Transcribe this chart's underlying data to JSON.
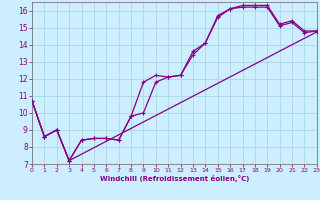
{
  "xlabel": "Windchill (Refroidissement éolien,°C)",
  "xlim": [
    0,
    23
  ],
  "ylim": [
    7,
    16.5
  ],
  "xticks": [
    0,
    1,
    2,
    3,
    4,
    5,
    6,
    7,
    8,
    9,
    10,
    11,
    12,
    13,
    14,
    15,
    16,
    17,
    18,
    19,
    20,
    21,
    22,
    23
  ],
  "yticks": [
    7,
    8,
    9,
    10,
    11,
    12,
    13,
    14,
    15,
    16
  ],
  "bg_color": "#cceeff",
  "grid_color": "#aad8e0",
  "line_color": "#880088",
  "line1_x": [
    0,
    1,
    2,
    3,
    4,
    5,
    6,
    7,
    8,
    9,
    10,
    11,
    12,
    13,
    14,
    15,
    16,
    17,
    18,
    19,
    20,
    21,
    22,
    23
  ],
  "line1_y": [
    10.7,
    8.6,
    9.0,
    7.2,
    8.4,
    8.5,
    8.5,
    8.4,
    9.8,
    11.8,
    12.2,
    12.1,
    12.2,
    13.6,
    14.1,
    15.7,
    16.1,
    16.3,
    16.3,
    16.3,
    15.2,
    15.4,
    14.8,
    14.8
  ],
  "line2_x": [
    0,
    1,
    2,
    3,
    4,
    5,
    6,
    7,
    8,
    9,
    10,
    11,
    12,
    13,
    14,
    15,
    16,
    17,
    18,
    19,
    20,
    21,
    22,
    23
  ],
  "line2_y": [
    10.7,
    8.6,
    9.0,
    7.2,
    8.4,
    8.5,
    8.5,
    8.4,
    9.8,
    10.0,
    11.8,
    12.1,
    12.2,
    13.4,
    14.1,
    15.6,
    16.1,
    16.2,
    16.2,
    16.2,
    15.1,
    15.3,
    14.7,
    14.8
  ],
  "line3_x": [
    0,
    1,
    2,
    3,
    23
  ],
  "line3_y": [
    10.7,
    8.6,
    9.0,
    7.2,
    14.75
  ]
}
